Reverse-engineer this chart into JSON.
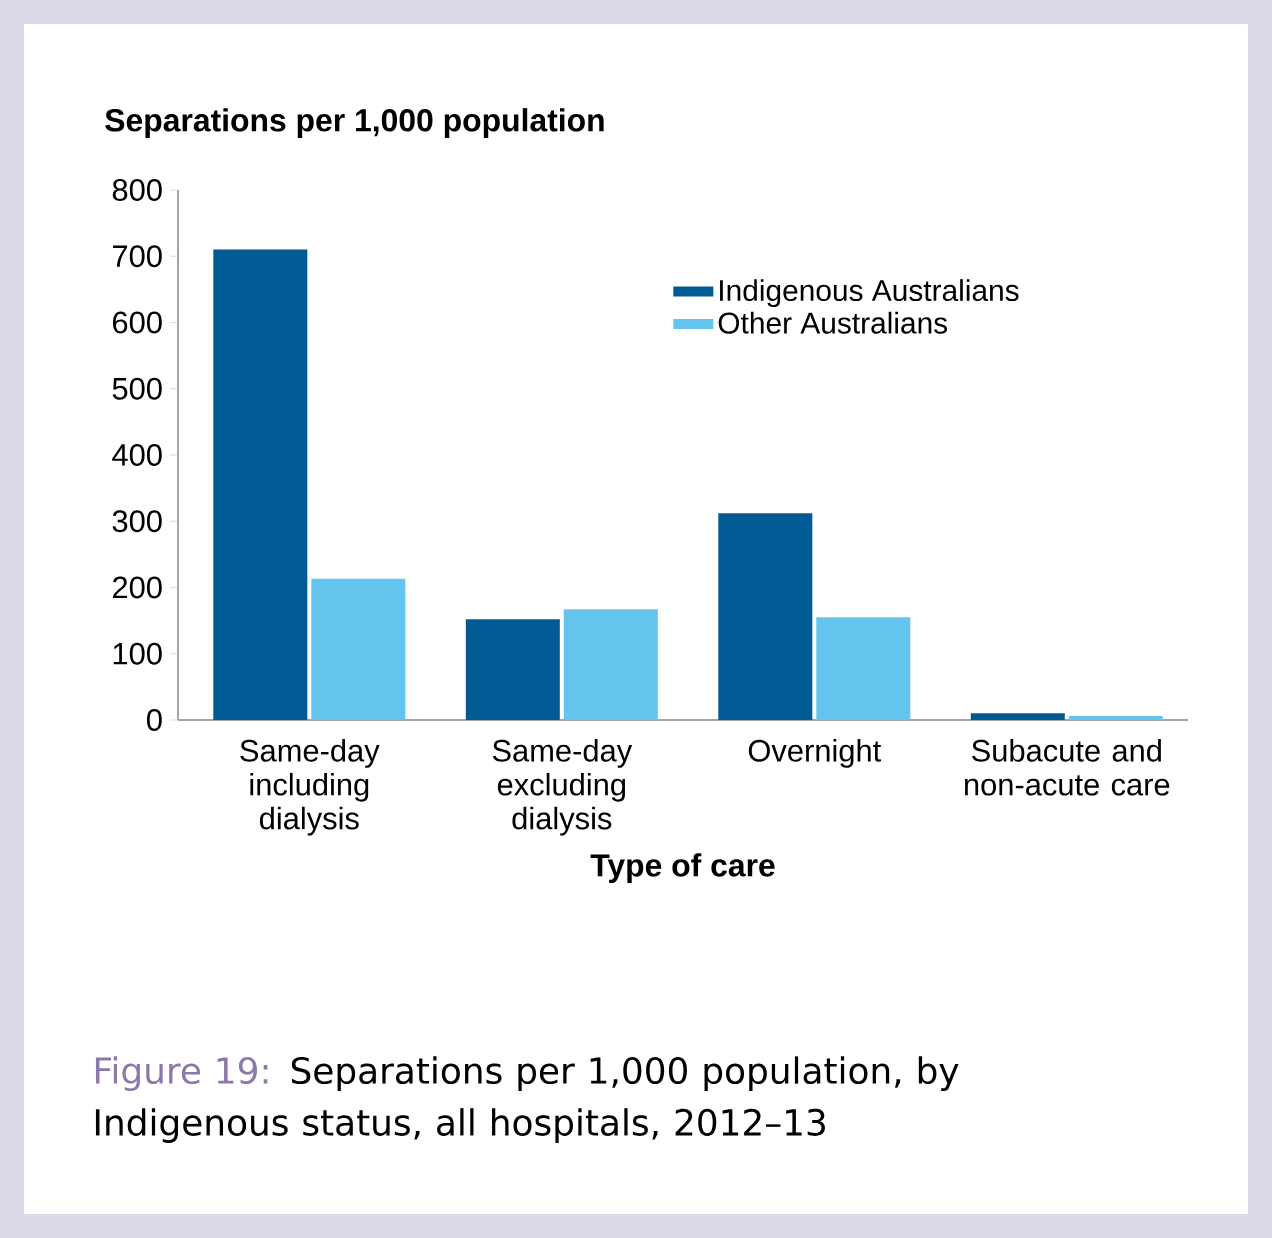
{
  "chart_data": {
    "type": "bar",
    "ylabel": "Separations per 1,000 population",
    "xlabel": "Type of care",
    "categories": [
      "Same-day including dialysis",
      "Same-day excluding dialysis",
      "Overnight",
      "Subacute and non-acute care"
    ],
    "series": [
      {
        "name": "Indigenous Australians",
        "color": "#005a94",
        "values": [
          710,
          152,
          312,
          10
        ]
      },
      {
        "name": "Other Australians",
        "color": "#63c4ee",
        "values": [
          213,
          167,
          155,
          6
        ]
      }
    ],
    "ylim": [
      0,
      800
    ],
    "yticks": [
      0,
      100,
      200,
      300,
      400,
      500,
      600,
      700,
      800
    ],
    "legend": "top right",
    "grid": false,
    "annotations": [
      "Figure 19:",
      "Separations per 1,000 population, by Indigenous status, all hospitals, 2012–13"
    ]
  }
}
